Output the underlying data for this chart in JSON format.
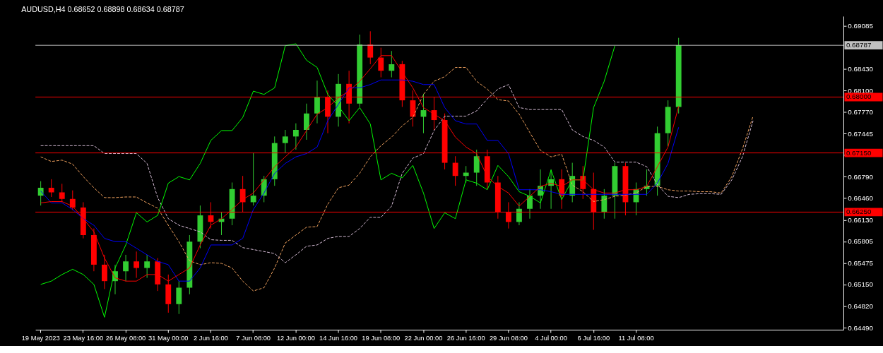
{
  "chart_data": {
    "type": "candlestick",
    "title": "AUDUSD,H4  0.68652 0.68898 0.68634 0.68787",
    "categories": [
      "19 May 2023",
      null,
      null,
      null,
      "23 May 16:00",
      null,
      null,
      null,
      "26 May 08:00",
      null,
      null,
      null,
      "31 May 00:00",
      null,
      null,
      null,
      "2 Jun 16:00",
      null,
      null,
      null,
      "7 Jun 08:00",
      null,
      null,
      null,
      "12 Jun 00:00",
      null,
      null,
      null,
      "14 Jun 16:00",
      null,
      null,
      null,
      "19 Jun 08:00",
      null,
      null,
      null,
      "22 Jun 00:00",
      null,
      null,
      null,
      "26 Jun 16:00",
      null,
      null,
      null,
      "29 Jun 08:00",
      null,
      null,
      null,
      "4 Jul 00:00",
      null,
      null,
      null,
      "6 Jul 16:00",
      null,
      null,
      null,
      "11 Jul 08:00",
      null,
      null,
      null,
      null,
      null,
      null,
      null,
      null,
      null,
      null,
      null,
      null,
      null,
      null,
      null,
      null,
      null,
      null,
      null
    ],
    "ohlc": [
      [
        0.665,
        0.6672,
        0.6635,
        0.6662
      ],
      [
        0.6662,
        0.6675,
        0.6648,
        0.6655
      ],
      [
        0.6655,
        0.6668,
        0.664,
        0.6645
      ],
      [
        0.6645,
        0.6658,
        0.6628,
        0.6632
      ],
      [
        0.6632,
        0.664,
        0.6585,
        0.659
      ],
      [
        0.659,
        0.66,
        0.6535,
        0.6545
      ],
      [
        0.6545,
        0.656,
        0.6508,
        0.652
      ],
      [
        0.652,
        0.6545,
        0.65,
        0.6535
      ],
      [
        0.6535,
        0.656,
        0.652,
        0.655
      ],
      [
        0.655,
        0.6565,
        0.6525,
        0.654
      ],
      [
        0.654,
        0.656,
        0.6525,
        0.655
      ],
      [
        0.655,
        0.6555,
        0.6505,
        0.6515
      ],
      [
        0.6515,
        0.653,
        0.6472,
        0.6485
      ],
      [
        0.6485,
        0.652,
        0.647,
        0.651
      ],
      [
        0.651,
        0.659,
        0.65,
        0.658
      ],
      [
        0.658,
        0.6635,
        0.657,
        0.662
      ],
      [
        0.662,
        0.664,
        0.66,
        0.661
      ],
      [
        0.661,
        0.6625,
        0.659,
        0.6615
      ],
      [
        0.6615,
        0.667,
        0.6605,
        0.666
      ],
      [
        0.666,
        0.668,
        0.6625,
        0.664
      ],
      [
        0.664,
        0.6715,
        0.6635,
        0.665
      ],
      [
        0.665,
        0.668,
        0.664,
        0.6675
      ],
      [
        0.6675,
        0.674,
        0.6665,
        0.673
      ],
      [
        0.673,
        0.675,
        0.6715,
        0.674
      ],
      [
        0.674,
        0.676,
        0.672,
        0.675
      ],
      [
        0.675,
        0.679,
        0.6735,
        0.6775
      ],
      [
        0.6775,
        0.6825,
        0.676,
        0.68
      ],
      [
        0.68,
        0.681,
        0.6745,
        0.677
      ],
      [
        0.677,
        0.6835,
        0.6755,
        0.682
      ],
      [
        0.682,
        0.684,
        0.676,
        0.679
      ],
      [
        0.679,
        0.6895,
        0.6785,
        0.688
      ],
      [
        0.688,
        0.69,
        0.685,
        0.686
      ],
      [
        0.686,
        0.6875,
        0.683,
        0.684
      ],
      [
        0.684,
        0.687,
        0.683,
        0.685
      ],
      [
        0.685,
        0.6855,
        0.6785,
        0.6795
      ],
      [
        0.6795,
        0.681,
        0.6755,
        0.677
      ],
      [
        0.677,
        0.6805,
        0.6745,
        0.678
      ],
      [
        0.678,
        0.68,
        0.675,
        0.6765
      ],
      [
        0.6765,
        0.6775,
        0.669,
        0.67
      ],
      [
        0.67,
        0.671,
        0.6665,
        0.668
      ],
      [
        0.668,
        0.6695,
        0.667,
        0.6685
      ],
      [
        0.6685,
        0.672,
        0.6665,
        0.671
      ],
      [
        0.671,
        0.672,
        0.666,
        0.667
      ],
      [
        0.667,
        0.668,
        0.6615,
        0.6625
      ],
      [
        0.6625,
        0.664,
        0.66,
        0.661
      ],
      [
        0.661,
        0.664,
        0.6605,
        0.663
      ],
      [
        0.663,
        0.666,
        0.6615,
        0.665
      ],
      [
        0.665,
        0.669,
        0.663,
        0.6665
      ],
      [
        0.6665,
        0.669,
        0.663,
        0.6675
      ],
      [
        0.6675,
        0.669,
        0.663,
        0.665
      ],
      [
        0.665,
        0.67,
        0.664,
        0.668
      ],
      [
        0.668,
        0.6695,
        0.6645,
        0.666
      ],
      [
        0.666,
        0.6685,
        0.6598,
        0.6625
      ],
      [
        0.6625,
        0.666,
        0.6615,
        0.665
      ],
      [
        0.665,
        0.67,
        0.6615,
        0.6695
      ],
      [
        0.6695,
        0.67,
        0.662,
        0.664
      ],
      [
        0.664,
        0.667,
        0.662,
        0.666
      ],
      [
        0.666,
        0.669,
        0.665,
        0.6665
      ],
      [
        0.6665,
        0.6755,
        0.665,
        0.6745
      ],
      [
        0.6745,
        0.6795,
        0.6725,
        0.6785
      ],
      [
        0.6785,
        0.689,
        0.6775,
        0.6879
      ],
      null,
      null,
      null,
      null,
      null,
      null,
      null,
      null,
      null,
      null,
      null,
      null,
      null,
      null,
      null
    ],
    "colors": [
      "#32cd32",
      "#ff0000",
      "#ff0000",
      "#ff0000",
      "#ff0000",
      "#ff0000",
      "#ff0000",
      "#32cd32",
      "#32cd32",
      "#ff0000",
      "#32cd32",
      "#ff0000",
      "#ff0000",
      "#32cd32",
      "#32cd32",
      "#32cd32",
      "#ff0000",
      "#32cd32",
      "#32cd32",
      "#ff0000",
      "#32cd32",
      "#32cd32",
      "#32cd32",
      "#32cd32",
      "#32cd32",
      "#32cd32",
      "#32cd32",
      "#ff0000",
      "#32cd32",
      "#ff0000",
      "#32cd32",
      "#ff0000",
      "#ff0000",
      "#32cd32",
      "#ff0000",
      "#ff0000",
      "#32cd32",
      "#ff0000",
      "#ff0000",
      "#ff0000",
      "#32cd32",
      "#32cd32",
      "#ff0000",
      "#ff0000",
      "#ff0000",
      "#32cd32",
      "#32cd32",
      "#32cd32",
      "#32cd32",
      "#ff0000",
      "#32cd32",
      "#ff0000",
      "#ff0000",
      "#32cd32",
      "#32cd32",
      "#ff0000",
      "#32cd32",
      "#32cd32",
      "#32cd32",
      "#32cd32",
      "#32cd32",
      null,
      null,
      null,
      null,
      null,
      null,
      null,
      null,
      null,
      null,
      null,
      null,
      null,
      null,
      null
    ],
    "series": [
      {
        "type": "line",
        "color": "#f4a460",
        "line_style": "dashed",
        "values": [
          0.6709,
          0.6702,
          0.6704,
          0.6698,
          0.6679,
          0.6662,
          0.6647,
          0.6647,
          0.6648,
          0.6648,
          0.6639,
          0.6631,
          0.6605,
          0.658,
          0.6551,
          0.6545,
          0.6548,
          0.6547,
          0.654,
          0.652,
          0.6505,
          0.651,
          0.654,
          0.6578,
          0.659,
          0.6602,
          0.6603,
          0.6637,
          0.6662,
          0.6666,
          0.6684,
          0.6709,
          0.6726,
          0.6739,
          0.6756,
          0.6769,
          0.6804,
          0.6824,
          0.6831,
          0.6845,
          0.6845,
          0.6824,
          0.6812,
          0.6796,
          0.6794,
          0.6774,
          0.6746,
          0.6719,
          0.6709,
          0.6713,
          0.6666,
          0.6656,
          0.6641,
          0.6644,
          0.6649,
          0.6651,
          0.6654,
          0.6664,
          0.6664,
          0.6659,
          0.6657,
          0.6657,
          0.6656,
          0.6656,
          0.6654,
          0.6679,
          0.6721,
          0.6771,
          null,
          null,
          null,
          null,
          null,
          null,
          null,
          null
        ]
      },
      {
        "type": "line",
        "color": "#d8bfd8",
        "line_style": "dashed",
        "values": [
          0.6726,
          0.6726,
          0.6726,
          0.6726,
          0.6726,
          0.6726,
          0.6714,
          0.6714,
          0.6714,
          0.6714,
          0.6699,
          0.6647,
          0.6615,
          0.6605,
          0.66,
          0.6595,
          0.6583,
          0.6582,
          0.6582,
          0.6571,
          0.6568,
          0.6565,
          0.6562,
          0.6548,
          0.656,
          0.6573,
          0.6575,
          0.6585,
          0.6588,
          0.6588,
          0.66,
          0.6617,
          0.6617,
          0.6634,
          0.6684,
          0.6707,
          0.6714,
          0.6749,
          0.6771,
          0.6771,
          0.6771,
          0.6779,
          0.6797,
          0.6812,
          0.6819,
          0.6784,
          0.6781,
          0.6781,
          0.6781,
          0.6781,
          0.675,
          0.674,
          0.6734,
          0.6724,
          0.6701,
          0.6701,
          0.6701,
          0.6694,
          0.6667,
          0.6649,
          0.6647,
          0.6652,
          0.6653,
          0.6653,
          0.6652,
          0.6674,
          0.6709,
          0.6764,
          null,
          null,
          null,
          null,
          null,
          null,
          null,
          null
        ]
      },
      {
        "type": "line",
        "color": "#00ff00",
        "values": [
          0.6515,
          0.652,
          0.653,
          0.6538,
          0.653,
          0.6515,
          0.6465,
          0.654,
          0.6575,
          0.6624,
          0.661,
          0.662,
          0.6669,
          0.6679,
          0.6674,
          0.6699,
          0.6734,
          0.6749,
          0.6749,
          0.6769,
          0.6809,
          0.6804,
          0.6814,
          0.6878,
          0.6881,
          0.6856,
          0.6845,
          0.6804,
          0.6786,
          0.6764,
          0.6784,
          0.6759,
          0.6674,
          0.6684,
          0.6677,
          0.6696,
          0.6654,
          0.66,
          0.6624,
          0.6615,
          0.6674,
          0.6669,
          0.6659,
          0.6696,
          0.6679,
          0.6656,
          0.6649,
          0.6639,
          0.6689,
          0.6644,
          0.6674,
          0.6674,
          0.6784,
          0.6824,
          0.6878,
          null,
          null,
          null,
          null,
          null,
          null,
          null,
          null,
          null,
          null,
          null,
          null,
          null,
          null,
          null,
          null,
          null,
          null,
          null,
          null,
          null
        ]
      },
      {
        "type": "line",
        "color": "#0000ff",
        "values": [
          0.6657,
          0.6639,
          0.6639,
          0.6629,
          0.6615,
          0.6605,
          0.6585,
          0.658,
          0.658,
          0.657,
          0.656,
          0.655,
          0.6545,
          0.652,
          0.652,
          0.654,
          0.6575,
          0.6575,
          0.6575,
          0.6585,
          0.6629,
          0.6654,
          0.6684,
          0.6699,
          0.6709,
          0.6714,
          0.6724,
          0.6764,
          0.6789,
          0.6814,
          0.6814,
          0.6819,
          0.6826,
          0.6826,
          0.6826,
          0.6824,
          0.6819,
          0.6819,
          0.6784,
          0.6764,
          0.6759,
          0.6759,
          0.6734,
          0.6734,
          0.6714,
          0.6659,
          0.6659,
          0.6659,
          0.6656,
          0.6652,
          0.6652,
          0.6652,
          0.6652,
          0.6652,
          0.6652,
          0.6652,
          0.6652,
          0.6652,
          0.6669,
          0.6699,
          0.6754,
          null,
          null,
          null,
          null,
          null,
          null,
          null,
          null,
          null,
          null,
          null,
          null,
          null,
          null,
          null
        ]
      },
      {
        "type": "line",
        "color": "#ff0000",
        "values": [
          0.6639,
          0.6641,
          0.6641,
          0.6634,
          0.6615,
          0.6595,
          0.6555,
          0.6525,
          0.652,
          0.652,
          0.653,
          0.653,
          0.652,
          0.653,
          0.654,
          0.6575,
          0.6605,
          0.6615,
          0.6629,
          0.6644,
          0.6654,
          0.6674,
          0.6694,
          0.6709,
          0.6724,
          0.6749,
          0.6774,
          0.6784,
          0.6799,
          0.6809,
          0.6824,
          0.6843,
          0.6863,
          0.6863,
          0.6838,
          0.6814,
          0.6784,
          0.6774,
          0.6764,
          0.6739,
          0.6724,
          0.6714,
          0.6679,
          0.6664,
          0.6654,
          0.6634,
          0.6649,
          0.6664,
          0.6669,
          0.6664,
          0.6674,
          0.6674,
          0.6659,
          0.6654,
          0.6654,
          0.6659,
          0.6659,
          0.6664,
          0.6694,
          0.6724,
          0.6786,
          null,
          null,
          null,
          null,
          null,
          null,
          null,
          null,
          null,
          null,
          null,
          null,
          null,
          null,
          null
        ]
      }
    ],
    "ylim": [
      0.6446,
      0.6923
    ],
    "yticks": [
      0.69085,
      {
        "value": 0.6843,
        "label": "0.68430"
      },
      {
        "value": 0.681,
        "label": "0.68100"
      },
      {
        "value": 0.6777,
        "label": "0.67770"
      },
      0.67445,
      {
        "value": 0.67115,
        "label": null
      },
      {
        "value": 0.6679,
        "label": "0.66790"
      },
      {
        "value": 0.6646,
        "label": "0.66460"
      },
      {
        "value": 0.6613,
        "label": "0.66130"
      },
      0.65805,
      0.65475,
      {
        "value": 0.6515,
        "label": "0.65150"
      },
      {
        "value": 0.6482,
        "label": "0.64820"
      },
      {
        "value": 0.6449,
        "label": "0.64490"
      }
    ],
    "ref_lines": [
      {
        "axis": "y",
        "value": 0.68787,
        "label": "0.68787",
        "color": "#c0c0c0"
      },
      {
        "axis": "y",
        "value": 0.68,
        "label": "0.68000",
        "color": "#ff0000"
      },
      {
        "axis": "y",
        "value": 0.6715,
        "label": "0.67150",
        "color": "#ff0000"
      },
      {
        "axis": "y",
        "value": 0.6625,
        "label": "0.66250",
        "color": "#ff0000"
      }
    ]
  }
}
